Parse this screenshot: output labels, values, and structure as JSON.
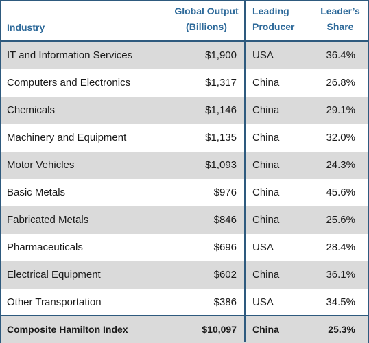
{
  "headers": {
    "industry": "Industry",
    "output_l1": "Global Output",
    "output_l2": "(Billions)",
    "producer_l1": "Leading",
    "producer_l2": "Producer",
    "share_l1": "Leader’s",
    "share_l2": "Share"
  },
  "rows": [
    {
      "industry": "IT and Information Services",
      "output": "$1,900",
      "producer": "USA",
      "share": "36.4%"
    },
    {
      "industry": "Computers and Electronics",
      "output": "$1,317",
      "producer": "China",
      "share": "26.8%"
    },
    {
      "industry": "Chemicals",
      "output": "$1,146",
      "producer": "China",
      "share": "29.1%"
    },
    {
      "industry": "Machinery and Equipment",
      "output": "$1,135",
      "producer": "China",
      "share": "32.0%"
    },
    {
      "industry": "Motor Vehicles",
      "output": "$1,093",
      "producer": "China",
      "share": "24.3%"
    },
    {
      "industry": "Basic Metals",
      "output": "$976",
      "producer": "China",
      "share": "45.6%"
    },
    {
      "industry": "Fabricated Metals",
      "output": "$846",
      "producer": "China",
      "share": "25.6%"
    },
    {
      "industry": "Pharmaceuticals",
      "output": "$696",
      "producer": "USA",
      "share": "28.4%"
    },
    {
      "industry": "Electrical Equipment",
      "output": "$602",
      "producer": "China",
      "share": "36.1%"
    },
    {
      "industry": "Other Transportation",
      "output": "$386",
      "producer": "USA",
      "share": "34.5%"
    }
  ],
  "total": {
    "industry": "Composite Hamilton Index",
    "output": "$10,097",
    "producer": "China",
    "share": "25.3%"
  },
  "colors": {
    "header_text": "#2e6a9a",
    "rule": "#2e5a7e",
    "shade": "#dadada"
  }
}
